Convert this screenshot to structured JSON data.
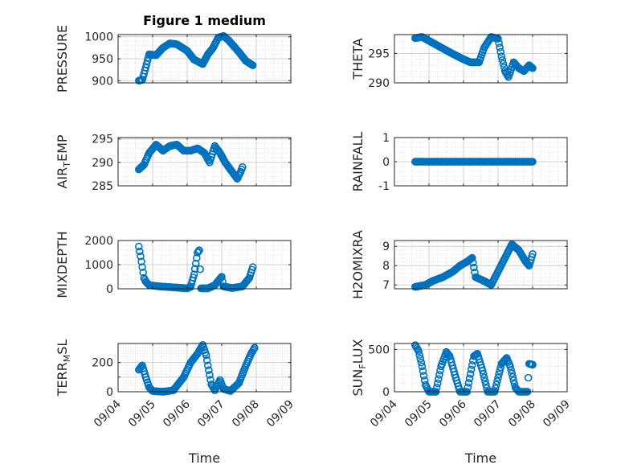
{
  "figure": {
    "background": "#ffffff",
    "marker_color": "#0072BD",
    "grid_color": "#d9d9d9",
    "axis_color": "#262626"
  },
  "chart_data": [
    {
      "type": "scatter",
      "id": "pressure",
      "title": "Figure 1 medium",
      "ylabel": "PRESSURE",
      "xlabel": "",
      "ylim": [
        895,
        1005
      ],
      "yticks": [
        900,
        950,
        1000
      ],
      "ytick_labels": [
        "900",
        "950",
        "1000"
      ],
      "xticks": [
        "09/04",
        "09/05",
        "09/06",
        "09/07",
        "09/08",
        "09/09"
      ],
      "xtick_labels": [],
      "grid": true,
      "keyframes": [
        [
          4.6,
          900
        ],
        [
          4.7,
          902
        ],
        [
          4.8,
          930
        ],
        [
          4.9,
          960
        ],
        [
          5.1,
          958
        ],
        [
          5.3,
          975
        ],
        [
          5.5,
          985
        ],
        [
          5.7,
          983
        ],
        [
          6.0,
          968
        ],
        [
          6.2,
          948
        ],
        [
          6.45,
          938
        ],
        [
          6.6,
          960
        ],
        [
          6.75,
          975
        ],
        [
          6.9,
          998
        ],
        [
          7.05,
          1002
        ],
        [
          7.2,
          992
        ],
        [
          7.5,
          965
        ],
        [
          7.7,
          945
        ],
        [
          7.9,
          935
        ]
      ]
    },
    {
      "type": "scatter",
      "id": "theta",
      "title": "",
      "ylabel": "THETA",
      "xlabel": "",
      "ylim": [
        290,
        298.2
      ],
      "yticks": [
        290,
        295
      ],
      "ytick_labels": [
        "290",
        "295"
      ],
      "xticks": [
        "09/04",
        "09/05",
        "09/06",
        "09/07",
        "09/08",
        "09/09"
      ],
      "xtick_labels": [],
      "grid": true,
      "keyframes": [
        [
          4.6,
          297.6
        ],
        [
          4.8,
          297.8
        ],
        [
          5.2,
          296.5
        ],
        [
          5.6,
          295.2
        ],
        [
          6.0,
          294.0
        ],
        [
          6.2,
          293.5
        ],
        [
          6.45,
          293.5
        ],
        [
          6.6,
          296.0
        ],
        [
          6.8,
          297.8
        ],
        [
          7.0,
          297.5
        ],
        [
          7.1,
          294.5
        ],
        [
          7.2,
          292.0
        ],
        [
          7.3,
          291.0
        ],
        [
          7.45,
          293.5
        ],
        [
          7.6,
          292.5
        ],
        [
          7.75,
          292.0
        ],
        [
          7.9,
          293.0
        ],
        [
          8.0,
          292.5
        ]
      ]
    },
    {
      "type": "scatter",
      "id": "air_temp",
      "title": "",
      "ylabel": "AIR_TEMP",
      "ylabel_parts": [
        "AIR",
        "T",
        "EMP"
      ],
      "xlabel": "",
      "ylim": [
        285,
        295.3
      ],
      "yticks": [
        285,
        290,
        295
      ],
      "ytick_labels": [
        "285",
        "290",
        "295"
      ],
      "xticks": [
        "09/04",
        "09/05",
        "09/06",
        "09/07",
        "09/08",
        "09/09"
      ],
      "xtick_labels": [],
      "grid": true,
      "keyframes": [
        [
          4.6,
          288.5
        ],
        [
          4.75,
          289.5
        ],
        [
          4.9,
          292.0
        ],
        [
          5.1,
          293.8
        ],
        [
          5.3,
          292.5
        ],
        [
          5.5,
          293.5
        ],
        [
          5.7,
          293.8
        ],
        [
          5.9,
          292.5
        ],
        [
          6.1,
          292.5
        ],
        [
          6.3,
          293.0
        ],
        [
          6.5,
          292.0
        ],
        [
          6.65,
          290.0
        ],
        [
          6.8,
          293.5
        ],
        [
          6.95,
          292.0
        ],
        [
          7.1,
          290.0
        ],
        [
          7.3,
          288.0
        ],
        [
          7.45,
          286.5
        ],
        [
          7.55,
          288.0
        ],
        [
          7.6,
          289.0
        ]
      ]
    },
    {
      "type": "scatter",
      "id": "rainfall",
      "title": "",
      "ylabel": "RAINFALL",
      "xlabel": "",
      "ylim": [
        -1,
        1
      ],
      "yticks": [
        -1,
        0,
        1
      ],
      "ytick_labels": [
        "-1",
        "0",
        "1"
      ],
      "xticks": [
        "09/04",
        "09/05",
        "09/06",
        "09/07",
        "09/08",
        "09/09"
      ],
      "xtick_labels": [],
      "grid": true,
      "keyframes": [
        [
          4.6,
          0
        ],
        [
          8.0,
          0
        ]
      ]
    },
    {
      "type": "scatter",
      "id": "mixdepth",
      "title": "",
      "ylabel": "MIXDEPTH",
      "xlabel": "",
      "ylim": [
        0,
        2000
      ],
      "yticks": [
        0,
        1000,
        2000
      ],
      "ytick_labels": [
        "0",
        "1000",
        "2000"
      ],
      "xticks": [
        "09/04",
        "09/05",
        "09/06",
        "09/07",
        "09/08",
        "09/09"
      ],
      "xtick_labels": [],
      "grid": true,
      "keyframes": [
        [
          4.6,
          1750
        ],
        [
          4.65,
          1350
        ],
        [
          4.7,
          900
        ],
        [
          4.75,
          450
        ],
        [
          4.8,
          300
        ],
        [
          4.9,
          150
        ],
        [
          5.2,
          100
        ],
        [
          5.6,
          60
        ],
        [
          5.9,
          30
        ],
        [
          6.0,
          20
        ],
        [
          6.1,
          80
        ],
        [
          6.2,
          600
        ],
        [
          6.3,
          1500
        ],
        [
          6.35,
          1600
        ],
        [
          6.4,
          20
        ],
        [
          6.6,
          20
        ],
        [
          6.8,
          150
        ],
        [
          7.0,
          500
        ],
        [
          7.05,
          100
        ],
        [
          7.3,
          30
        ],
        [
          7.6,
          100
        ],
        [
          7.8,
          450
        ],
        [
          7.9,
          900
        ]
      ]
    },
    {
      "type": "scatter",
      "id": "h2omixra",
      "title": "",
      "ylabel": "H2OMIXRA",
      "xlabel": "",
      "ylim": [
        6.8,
        9.3
      ],
      "yticks": [
        7,
        8,
        9
      ],
      "ytick_labels": [
        "7",
        "8",
        "9"
      ],
      "xticks": [
        "09/04",
        "09/05",
        "09/06",
        "09/07",
        "09/08",
        "09/09"
      ],
      "xtick_labels": [],
      "grid": true,
      "keyframes": [
        [
          4.6,
          6.9
        ],
        [
          4.9,
          7.0
        ],
        [
          5.1,
          7.2
        ],
        [
          5.4,
          7.4
        ],
        [
          5.7,
          7.7
        ],
        [
          5.9,
          8.0
        ],
        [
          6.1,
          8.2
        ],
        [
          6.25,
          8.4
        ],
        [
          6.35,
          7.4
        ],
        [
          6.6,
          7.2
        ],
        [
          6.8,
          7.0
        ],
        [
          7.0,
          7.7
        ],
        [
          7.2,
          8.4
        ],
        [
          7.4,
          9.1
        ],
        [
          7.6,
          8.8
        ],
        [
          7.8,
          8.2
        ],
        [
          7.9,
          8.0
        ],
        [
          8.0,
          8.6
        ]
      ]
    },
    {
      "type": "scatter",
      "id": "terr_msl",
      "title": "",
      "ylabel": "TERR_MSL",
      "ylabel_parts": [
        "TERR",
        "M",
        "SL"
      ],
      "xlabel": "Time",
      "ylim": [
        0,
        330
      ],
      "yticks": [
        0,
        100,
        200
      ],
      "ytick_labels": [
        "0",
        "200"
      ],
      "ytick_label_values": [
        0,
        200
      ],
      "xticks": [
        "09/04",
        "09/05",
        "09/06",
        "09/07",
        "09/08",
        "09/09"
      ],
      "xtick_labels": [
        "09/04",
        "09/05",
        "09/06",
        "09/07",
        "09/08",
        "09/09"
      ],
      "grid": true,
      "keyframes": [
        [
          4.6,
          150
        ],
        [
          4.7,
          180
        ],
        [
          4.8,
          100
        ],
        [
          4.9,
          30
        ],
        [
          5.0,
          5
        ],
        [
          5.3,
          0
        ],
        [
          5.6,
          10
        ],
        [
          5.9,
          100
        ],
        [
          6.1,
          200
        ],
        [
          6.3,
          260
        ],
        [
          6.45,
          320
        ],
        [
          6.55,
          250
        ],
        [
          6.6,
          180
        ],
        [
          6.7,
          50
        ],
        [
          6.8,
          10
        ],
        [
          6.95,
          80
        ],
        [
          7.05,
          20
        ],
        [
          7.25,
          5
        ],
        [
          7.5,
          60
        ],
        [
          7.7,
          180
        ],
        [
          7.85,
          260
        ],
        [
          7.95,
          300
        ]
      ]
    },
    {
      "type": "scatter",
      "id": "sun_flux",
      "title": "",
      "ylabel": "SUN_FLUX",
      "ylabel_parts": [
        "SUN",
        "F",
        "LUX"
      ],
      "xlabel": "Time",
      "ylim": [
        0,
        570
      ],
      "yticks": [
        0,
        500
      ],
      "ytick_labels": [
        "0",
        "500"
      ],
      "xticks": [
        "09/04",
        "09/05",
        "09/06",
        "09/07",
        "09/08",
        "09/09"
      ],
      "xtick_labels": [
        "09/04",
        "09/05",
        "09/06",
        "09/07",
        "09/08",
        "09/09"
      ],
      "grid": true,
      "keyframes": [
        [
          4.6,
          550
        ],
        [
          4.7,
          480
        ],
        [
          4.8,
          300
        ],
        [
          4.9,
          80
        ],
        [
          5.0,
          0
        ],
        [
          5.2,
          0
        ],
        [
          5.35,
          300
        ],
        [
          5.5,
          470
        ],
        [
          5.6,
          420
        ],
        [
          5.75,
          200
        ],
        [
          5.9,
          0
        ],
        [
          6.1,
          0
        ],
        [
          6.3,
          420
        ],
        [
          6.4,
          450
        ],
        [
          6.55,
          250
        ],
        [
          6.7,
          0
        ],
        [
          6.9,
          0
        ],
        [
          7.1,
          330
        ],
        [
          7.25,
          400
        ],
        [
          7.35,
          300
        ],
        [
          7.5,
          50
        ],
        [
          7.6,
          0
        ],
        [
          7.85,
          0
        ],
        [
          7.9,
          330
        ],
        [
          8.0,
          320
        ]
      ]
    }
  ]
}
